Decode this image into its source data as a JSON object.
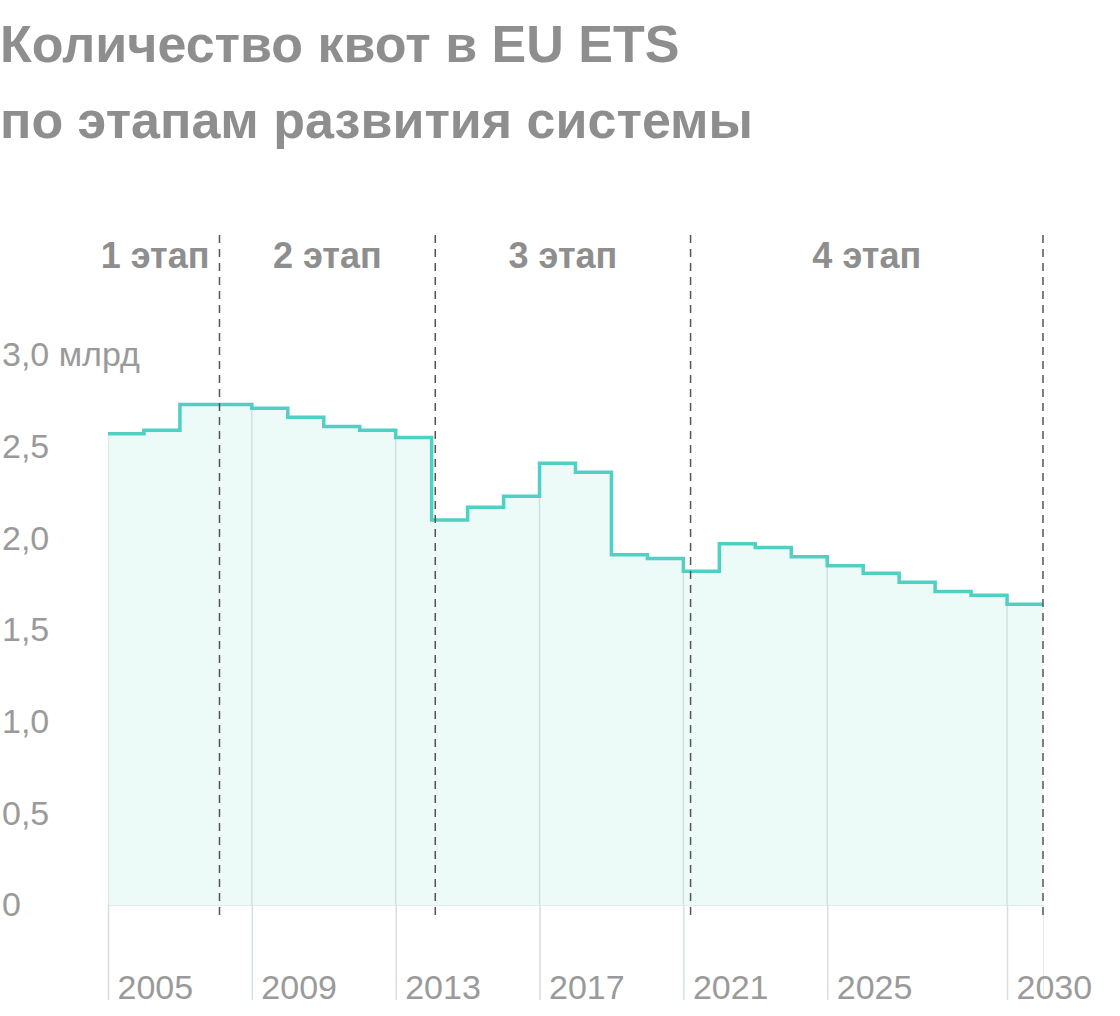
{
  "chart_data": {
    "type": "area",
    "title": [
      "Количество квот в EU ETS",
      "по этапам развития системы"
    ],
    "x": [
      2005,
      2006,
      2007,
      2008,
      2009,
      2010,
      2011,
      2012,
      2013,
      2014,
      2015,
      2016,
      2017,
      2018,
      2019,
      2020,
      2021,
      2022,
      2023,
      2024,
      2025,
      2026,
      2027,
      2028,
      2029,
      2030
    ],
    "values": [
      2.57,
      2.59,
      2.73,
      2.73,
      2.71,
      2.66,
      2.61,
      2.59,
      2.55,
      2.1,
      2.17,
      2.23,
      2.41,
      2.36,
      1.91,
      1.89,
      1.82,
      1.97,
      1.95,
      1.9,
      1.85,
      1.81,
      1.76,
      1.71,
      1.69,
      1.64
    ],
    "color": "#4fd0c3",
    "line_style": "step",
    "grid": true,
    "xlim": [
      2005,
      2031
    ],
    "xticks": [
      2005,
      2009,
      2013,
      2017,
      2021,
      2025,
      2030
    ],
    "ylim": [
      0,
      3
    ],
    "yticks": [
      0,
      {
        "value": 0.5,
        "label": "0,5"
      },
      {
        "value": 1,
        "label": "1,0"
      },
      {
        "value": 1.5,
        "label": "1,5"
      },
      {
        "value": 2,
        "label": "2,0"
      },
      {
        "value": 2.5,
        "label": "2,5"
      },
      {
        "value": 3,
        "label": "3,0 млрд"
      }
    ],
    "phases": [
      {
        "label": "1 этап",
        "end": 2008.1
      },
      {
        "label": "2 этап",
        "end": 2014.1
      },
      {
        "label": "3 этап",
        "end": 2021.2
      },
      {
        "label": "4 этап",
        "end": 2031
      }
    ]
  }
}
